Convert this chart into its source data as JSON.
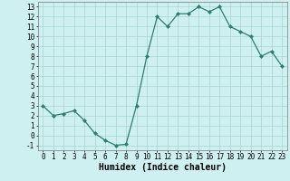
{
  "x": [
    0,
    1,
    2,
    3,
    4,
    5,
    6,
    7,
    8,
    9,
    10,
    11,
    12,
    13,
    14,
    15,
    16,
    17,
    18,
    19,
    20,
    21,
    22,
    23
  ],
  "y": [
    3,
    2,
    2.2,
    2.5,
    1.5,
    0.2,
    -0.5,
    -1,
    -0.9,
    3,
    8,
    12,
    11,
    12.3,
    12.3,
    13,
    12.5,
    13,
    11,
    10.5,
    10,
    8,
    8.5,
    7
  ],
  "line_color": "#2e7d6e",
  "marker": "D",
  "marker_size": 2,
  "bg_color": "#cff0f0",
  "grid_color": "#a8d4d4",
  "xlabel": "Humidex (Indice chaleur)",
  "ylim": [
    -1.5,
    13.5
  ],
  "xlim": [
    -0.5,
    23.5
  ],
  "yticks": [
    -1,
    0,
    1,
    2,
    3,
    4,
    5,
    6,
    7,
    8,
    9,
    10,
    11,
    12,
    13
  ],
  "xticks": [
    0,
    1,
    2,
    3,
    4,
    5,
    6,
    7,
    8,
    9,
    10,
    11,
    12,
    13,
    14,
    15,
    16,
    17,
    18,
    19,
    20,
    21,
    22,
    23
  ],
  "tick_fontsize": 5.5,
  "xlabel_fontsize": 7
}
